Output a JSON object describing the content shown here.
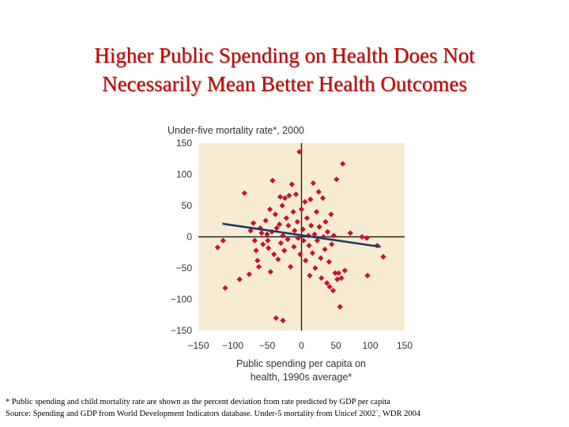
{
  "slide": {
    "title_line1": "Higher Public Spending on Health Does Not",
    "title_line2": "Necessarily Mean Better Health Outcomes",
    "footnote": "* Public spending and child mortality rate are shown as the percent deviation from rate predicted by GDP per capita",
    "source": "Source: Spending and GDP from World Development Indicators database. Under-5 mortality from Unicef 2002`, WDR 2004"
  },
  "colors": {
    "title": "#cc0000",
    "plot_bg": "#f7ecd2",
    "points": "#c8102e",
    "trend": "#1f3b63",
    "axis_text": "#333333"
  },
  "chart_data": {
    "type": "scatter",
    "title": "Under-five mortality rate*, 2000",
    "xlabel_lines": [
      "Public spending per capita on",
      "health, 1990s average*"
    ],
    "xlim": [
      -150,
      150
    ],
    "ylim": [
      -150,
      150
    ],
    "x_ticks": [
      -150,
      -100,
      -50,
      0,
      50,
      100,
      150
    ],
    "y_ticks": [
      150,
      100,
      50,
      0,
      -50,
      -100,
      -150
    ],
    "x_tick_labels": [
      "−150",
      "−100",
      "−50",
      "0",
      "50",
      "100",
      "150"
    ],
    "y_tick_labels": [
      "150",
      "100",
      "50",
      "0",
      "−50",
      "−100",
      "−150"
    ],
    "trend_line": {
      "x": [
        -115,
        115
      ],
      "y": [
        21,
        -16
      ]
    },
    "points": [
      {
        "x": -122,
        "y": -17
      },
      {
        "x": -114,
        "y": -6
      },
      {
        "x": -111,
        "y": -82
      },
      {
        "x": -90,
        "y": -68
      },
      {
        "x": -83,
        "y": 70
      },
      {
        "x": -76,
        "y": -60
      },
      {
        "x": -74,
        "y": 10
      },
      {
        "x": -70,
        "y": 22
      },
      {
        "x": -68,
        "y": -6
      },
      {
        "x": -66,
        "y": -22
      },
      {
        "x": -64,
        "y": -38
      },
      {
        "x": -62,
        "y": -48
      },
      {
        "x": -60,
        "y": 14
      },
      {
        "x": -58,
        "y": 6
      },
      {
        "x": -56,
        "y": -12
      },
      {
        "x": -52,
        "y": 26
      },
      {
        "x": -50,
        "y": 4
      },
      {
        "x": -48,
        "y": -18
      },
      {
        "x": -46,
        "y": 44
      },
      {
        "x": -45,
        "y": -56
      },
      {
        "x": -43,
        "y": 8
      },
      {
        "x": -42,
        "y": 90
      },
      {
        "x": -40,
        "y": -28
      },
      {
        "x": -38,
        "y": 36
      },
      {
        "x": -36,
        "y": 14
      },
      {
        "x": -34,
        "y": -36
      },
      {
        "x": -32,
        "y": 20
      },
      {
        "x": -31,
        "y": 64
      },
      {
        "x": -30,
        "y": -10
      },
      {
        "x": -28,
        "y": 50
      },
      {
        "x": -27,
        "y": 2
      },
      {
        "x": -25,
        "y": -22
      },
      {
        "x": -24,
        "y": 62
      },
      {
        "x": -22,
        "y": 30
      },
      {
        "x": -20,
        "y": -4
      },
      {
        "x": -19,
        "y": 18
      },
      {
        "x": -18,
        "y": 66
      },
      {
        "x": -16,
        "y": -48
      },
      {
        "x": -14,
        "y": 84
      },
      {
        "x": -12,
        "y": 40
      },
      {
        "x": -11,
        "y": -16
      },
      {
        "x": -10,
        "y": 10
      },
      {
        "x": -8,
        "y": 68
      },
      {
        "x": -6,
        "y": 24
      },
      {
        "x": -5,
        "y": -2
      },
      {
        "x": -3,
        "y": 136
      },
      {
        "x": -2,
        "y": -28
      },
      {
        "x": 0,
        "y": 44
      },
      {
        "x": 2,
        "y": 12
      },
      {
        "x": 3,
        "y": -6
      },
      {
        "x": 5,
        "y": 56
      },
      {
        "x": 6,
        "y": -38
      },
      {
        "x": 8,
        "y": 30
      },
      {
        "x": 10,
        "y": 2
      },
      {
        "x": 11,
        "y": -14
      },
      {
        "x": 13,
        "y": 60
      },
      {
        "x": 14,
        "y": 18
      },
      {
        "x": 16,
        "y": -26
      },
      {
        "x": 17,
        "y": 86
      },
      {
        "x": 19,
        "y": 4
      },
      {
        "x": 20,
        "y": -50
      },
      {
        "x": 22,
        "y": 40
      },
      {
        "x": 23,
        "y": -6
      },
      {
        "x": 25,
        "y": 72
      },
      {
        "x": 26,
        "y": 16
      },
      {
        "x": 28,
        "y": -34
      },
      {
        "x": 29,
        "y": -66
      },
      {
        "x": 31,
        "y": 62
      },
      {
        "x": 32,
        "y": 0
      },
      {
        "x": 34,
        "y": -20
      },
      {
        "x": 35,
        "y": 24
      },
      {
        "x": 37,
        "y": -74
      },
      {
        "x": 38,
        "y": 8
      },
      {
        "x": 40,
        "y": -40
      },
      {
        "x": 41,
        "y": -80
      },
      {
        "x": 43,
        "y": 36
      },
      {
        "x": 44,
        "y": -12
      },
      {
        "x": 46,
        "y": -86
      },
      {
        "x": 47,
        "y": 2
      },
      {
        "x": 49,
        "y": -58
      },
      {
        "x": 51,
        "y": 92
      },
      {
        "x": 52,
        "y": -68
      },
      {
        "x": 54,
        "y": -58
      },
      {
        "x": 56,
        "y": -112
      },
      {
        "x": 58,
        "y": -66
      },
      {
        "x": 60,
        "y": 117
      },
      {
        "x": 63,
        "y": -54
      },
      {
        "x": 71,
        "y": 6
      },
      {
        "x": 88,
        "y": 0
      },
      {
        "x": 96,
        "y": -62
      },
      {
        "x": 95,
        "y": -2
      },
      {
        "x": 110,
        "y": -14
      },
      {
        "x": 119,
        "y": -32
      },
      {
        "x": -37,
        "y": -130
      },
      {
        "x": -27,
        "y": -134
      },
      {
        "x": -49,
        "y": -6
      },
      {
        "x": 12,
        "y": -62
      }
    ]
  }
}
